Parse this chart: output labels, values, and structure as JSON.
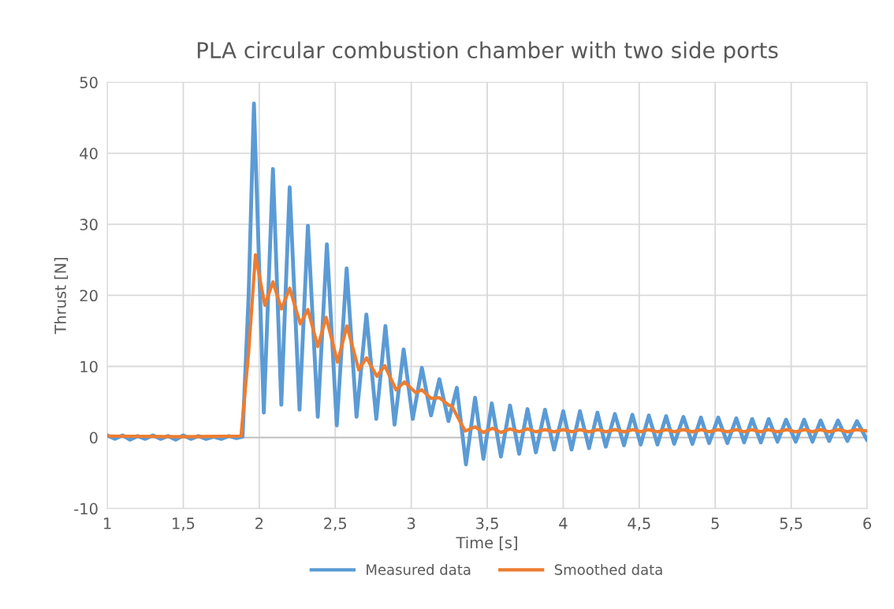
{
  "chart_data": {
    "type": "line",
    "title": "PLA circular combustion chamber with two side ports",
    "xlabel": "Time [s]",
    "ylabel": "Thrust [N]",
    "xlim": [
      1,
      6
    ],
    "xticks": [
      1,
      {
        "value": 1.5,
        "label": "1,5"
      },
      2,
      {
        "value": 2.5,
        "label": "2,5"
      },
      3,
      {
        "value": 3.5,
        "label": "3,5"
      },
      4,
      {
        "value": 4.5,
        "label": "4,5"
      },
      5,
      {
        "value": 5.5,
        "label": "5,5"
      },
      6
    ],
    "ylim": [
      -10,
      50
    ],
    "yticks": [
      -10,
      0,
      10,
      20,
      30,
      40,
      50
    ],
    "grid": true,
    "legend": "bottom",
    "marker": "none",
    "line_style": "solid",
    "series": [
      {
        "name": "Measured data",
        "color": "#5b9bd5",
        "x": [
          1.0,
          1.05,
          1.1,
          1.15,
          1.2,
          1.25,
          1.3,
          1.35,
          1.4,
          1.45,
          1.5,
          1.55,
          1.6,
          1.65,
          1.7,
          1.75,
          1.8,
          1.85,
          1.89,
          1.93,
          1.965,
          2.03,
          2.09,
          2.145,
          2.2,
          2.265,
          2.32,
          2.385,
          2.445,
          2.51,
          2.575,
          2.64,
          2.705,
          2.77,
          2.83,
          2.89,
          2.95,
          3.01,
          3.07,
          3.13,
          3.185,
          3.245,
          3.3,
          3.36,
          3.42,
          3.475,
          3.53,
          3.59,
          3.65,
          3.71,
          3.765,
          3.82,
          3.88,
          3.94,
          4.0,
          4.055,
          4.11,
          4.17,
          4.225,
          4.28,
          4.34,
          4.4,
          4.455,
          4.51,
          4.563,
          4.62,
          4.677,
          4.73,
          4.791,
          4.85,
          4.906,
          4.96,
          5.02,
          5.08,
          5.139,
          5.19,
          5.243,
          5.3,
          5.352,
          5.41,
          5.466,
          5.53,
          5.585,
          5.64,
          5.694,
          5.75,
          5.808,
          5.87,
          5.933,
          6.0
        ],
        "values": [
          0.3,
          -0.2,
          0.3,
          -0.3,
          0.2,
          -0.2,
          0.3,
          -0.2,
          0.2,
          -0.3,
          0.3,
          -0.2,
          0.2,
          -0.2,
          0.1,
          -0.2,
          0.2,
          -0.1,
          0.1,
          20,
          47,
          3.5,
          37.8,
          4.6,
          35.2,
          3.9,
          29.8,
          2.9,
          27.2,
          1.7,
          23.8,
          2.9,
          17.3,
          2.6,
          15.7,
          1.8,
          12.4,
          2.6,
          9.8,
          3.1,
          8.2,
          2.3,
          7.0,
          -3.8,
          5.6,
          -3.0,
          4.8,
          -2.7,
          4.5,
          -2.3,
          4.0,
          -2.1,
          3.9,
          -1.7,
          3.7,
          -1.7,
          3.7,
          -1.5,
          3.5,
          -1.3,
          3.3,
          -1.1,
          3.2,
          -1.0,
          3.1,
          -1.0,
          3.0,
          -0.9,
          2.9,
          -0.9,
          2.8,
          -0.8,
          2.8,
          -0.8,
          2.7,
          -0.7,
          2.6,
          -0.7,
          2.6,
          -0.6,
          2.5,
          -0.6,
          2.5,
          -0.6,
          2.4,
          -0.5,
          2.4,
          -0.5,
          2.3,
          -0.4
        ]
      },
      {
        "name": "Smoothed data",
        "color": "#ed7d31",
        "x": [
          1.0,
          1.5,
          1.88,
          1.93,
          1.975,
          2.037,
          2.09,
          2.146,
          2.2,
          2.27,
          2.32,
          2.385,
          2.44,
          2.515,
          2.577,
          2.655,
          2.706,
          2.774,
          2.826,
          2.9,
          2.955,
          3.03,
          3.07,
          3.13,
          3.185,
          3.25,
          3.265,
          3.355,
          3.42,
          3.475,
          3.535,
          3.59,
          3.65,
          3.71,
          3.765,
          3.82,
          3.88,
          3.94,
          4.0,
          4.06,
          4.11,
          4.17,
          4.23,
          4.28,
          4.34,
          4.4,
          4.46,
          4.51,
          4.56,
          4.62,
          4.68,
          4.73,
          4.79,
          4.85,
          4.91,
          4.96,
          5.02,
          5.08,
          5.14,
          5.19,
          5.24,
          5.3,
          5.35,
          5.41,
          5.47,
          5.53,
          5.59,
          5.64,
          5.69,
          5.75,
          5.81,
          5.87,
          5.93,
          6.0
        ],
        "values": [
          0.2,
          0.1,
          0.2,
          12,
          25.7,
          18.6,
          21.9,
          18.1,
          21.0,
          16.0,
          18.0,
          12.8,
          16.9,
          10.6,
          15.7,
          9.5,
          11.2,
          8.6,
          10.1,
          6.7,
          7.8,
          6.3,
          6.7,
          5.5,
          5.6,
          4.5,
          4.5,
          0.9,
          1.5,
          0.7,
          1.3,
          0.7,
          1.2,
          0.8,
          1.2,
          0.8,
          1.1,
          0.8,
          1.1,
          0.8,
          1.1,
          0.8,
          1.1,
          0.8,
          1.1,
          0.8,
          1.1,
          0.8,
          1.1,
          0.8,
          1.1,
          0.8,
          1.1,
          0.8,
          1.1,
          0.8,
          1.1,
          0.8,
          1.1,
          0.8,
          1.1,
          0.8,
          1.1,
          0.8,
          1.1,
          0.8,
          1.1,
          0.8,
          1.1,
          0.8,
          1.1,
          0.8,
          1.1,
          0.9
        ]
      }
    ]
  }
}
